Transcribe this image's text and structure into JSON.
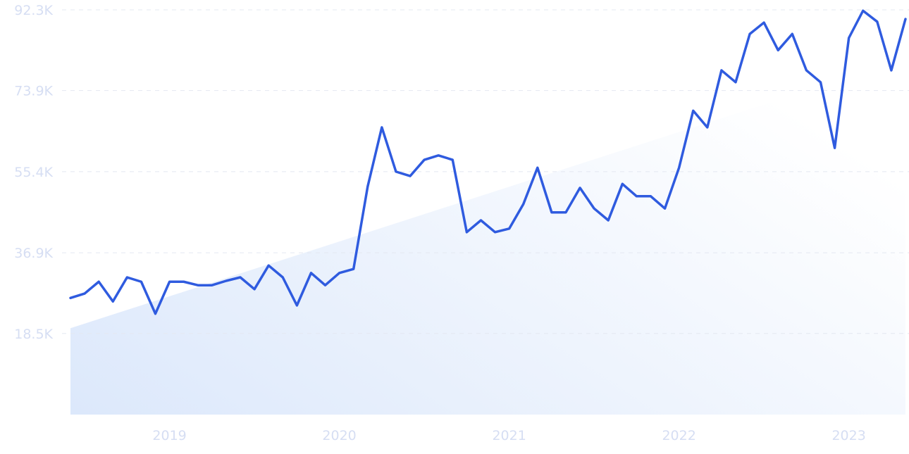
{
  "chart_data": {
    "type": "line",
    "categories": [
      null,
      null,
      null,
      null,
      null,
      null,
      null,
      "2019",
      null,
      null,
      null,
      null,
      null,
      null,
      null,
      null,
      null,
      null,
      null,
      "2020",
      null,
      null,
      null,
      null,
      null,
      null,
      null,
      null,
      null,
      null,
      null,
      "2021",
      null,
      null,
      null,
      null,
      null,
      null,
      null,
      null,
      null,
      null,
      null,
      "2022",
      null,
      null,
      null,
      null,
      null,
      null,
      null,
      null,
      null,
      null,
      null,
      "2023",
      null,
      null,
      null,
      null
    ],
    "series": [
      {
        "color": "#2f5bdf",
        "values": [
          26600,
          27600,
          30300,
          25800,
          31300,
          30300,
          23000,
          30300,
          30300,
          29500,
          29500,
          30500,
          31300,
          28600,
          34000,
          31300,
          24900,
          32300,
          29500,
          32300,
          33200,
          52000,
          65500,
          55400,
          54400,
          58100,
          59100,
          58100,
          41600,
          44300,
          41600,
          42400,
          48000,
          56300,
          46100,
          46100,
          51700,
          47000,
          44300,
          52600,
          49800,
          49800,
          47000,
          56300,
          69300,
          65500,
          78500,
          75800,
          86800,
          89400,
          83100,
          86800,
          78500,
          75800,
          60800,
          85900,
          92100,
          89600,
          78500,
          90200
        ]
      }
    ],
    "trend_area": {
      "start": 19700,
      "end": 81100,
      "color": "#dce8fb"
    },
    "ylim": [
      0,
      92300
    ],
    "yticks": [
      {
        "value": 18500,
        "label": "18.5K"
      },
      {
        "value": 36900,
        "label": "36.9K"
      },
      {
        "value": 55400,
        "label": "55.4K"
      },
      {
        "value": 73900,
        "label": "73.9K"
      },
      {
        "value": 92300,
        "label": "92.3K"
      }
    ],
    "grid": true
  }
}
